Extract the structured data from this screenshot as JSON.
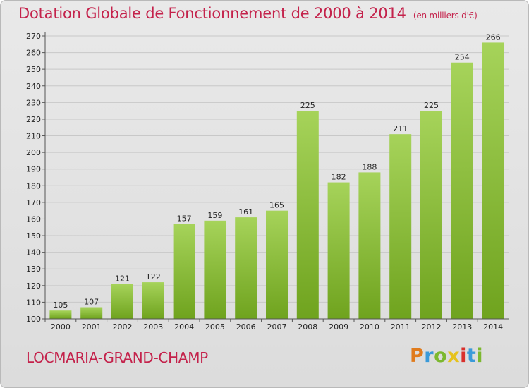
{
  "chart_data": {
    "type": "bar",
    "title": "Dotation Globale de Fonctionnement de 2000 à 2014",
    "unit_label": "(en milliers d'€)",
    "subtitle": "LOCMARIA-GRAND-CHAMP",
    "categories": [
      "2000",
      "2001",
      "2002",
      "2003",
      "2004",
      "2005",
      "2006",
      "2007",
      "2008",
      "2009",
      "2010",
      "2011",
      "2012",
      "2013",
      "2014"
    ],
    "values": [
      105,
      107,
      121,
      122,
      157,
      159,
      161,
      165,
      225,
      182,
      188,
      211,
      225,
      254,
      266
    ],
    "ylim": [
      100,
      270
    ],
    "ytick_step": 10,
    "grid": true,
    "bar_color_top": "#a6d35a",
    "bar_color_bottom": "#6fa31e",
    "brand_logo": "Proxiti"
  }
}
